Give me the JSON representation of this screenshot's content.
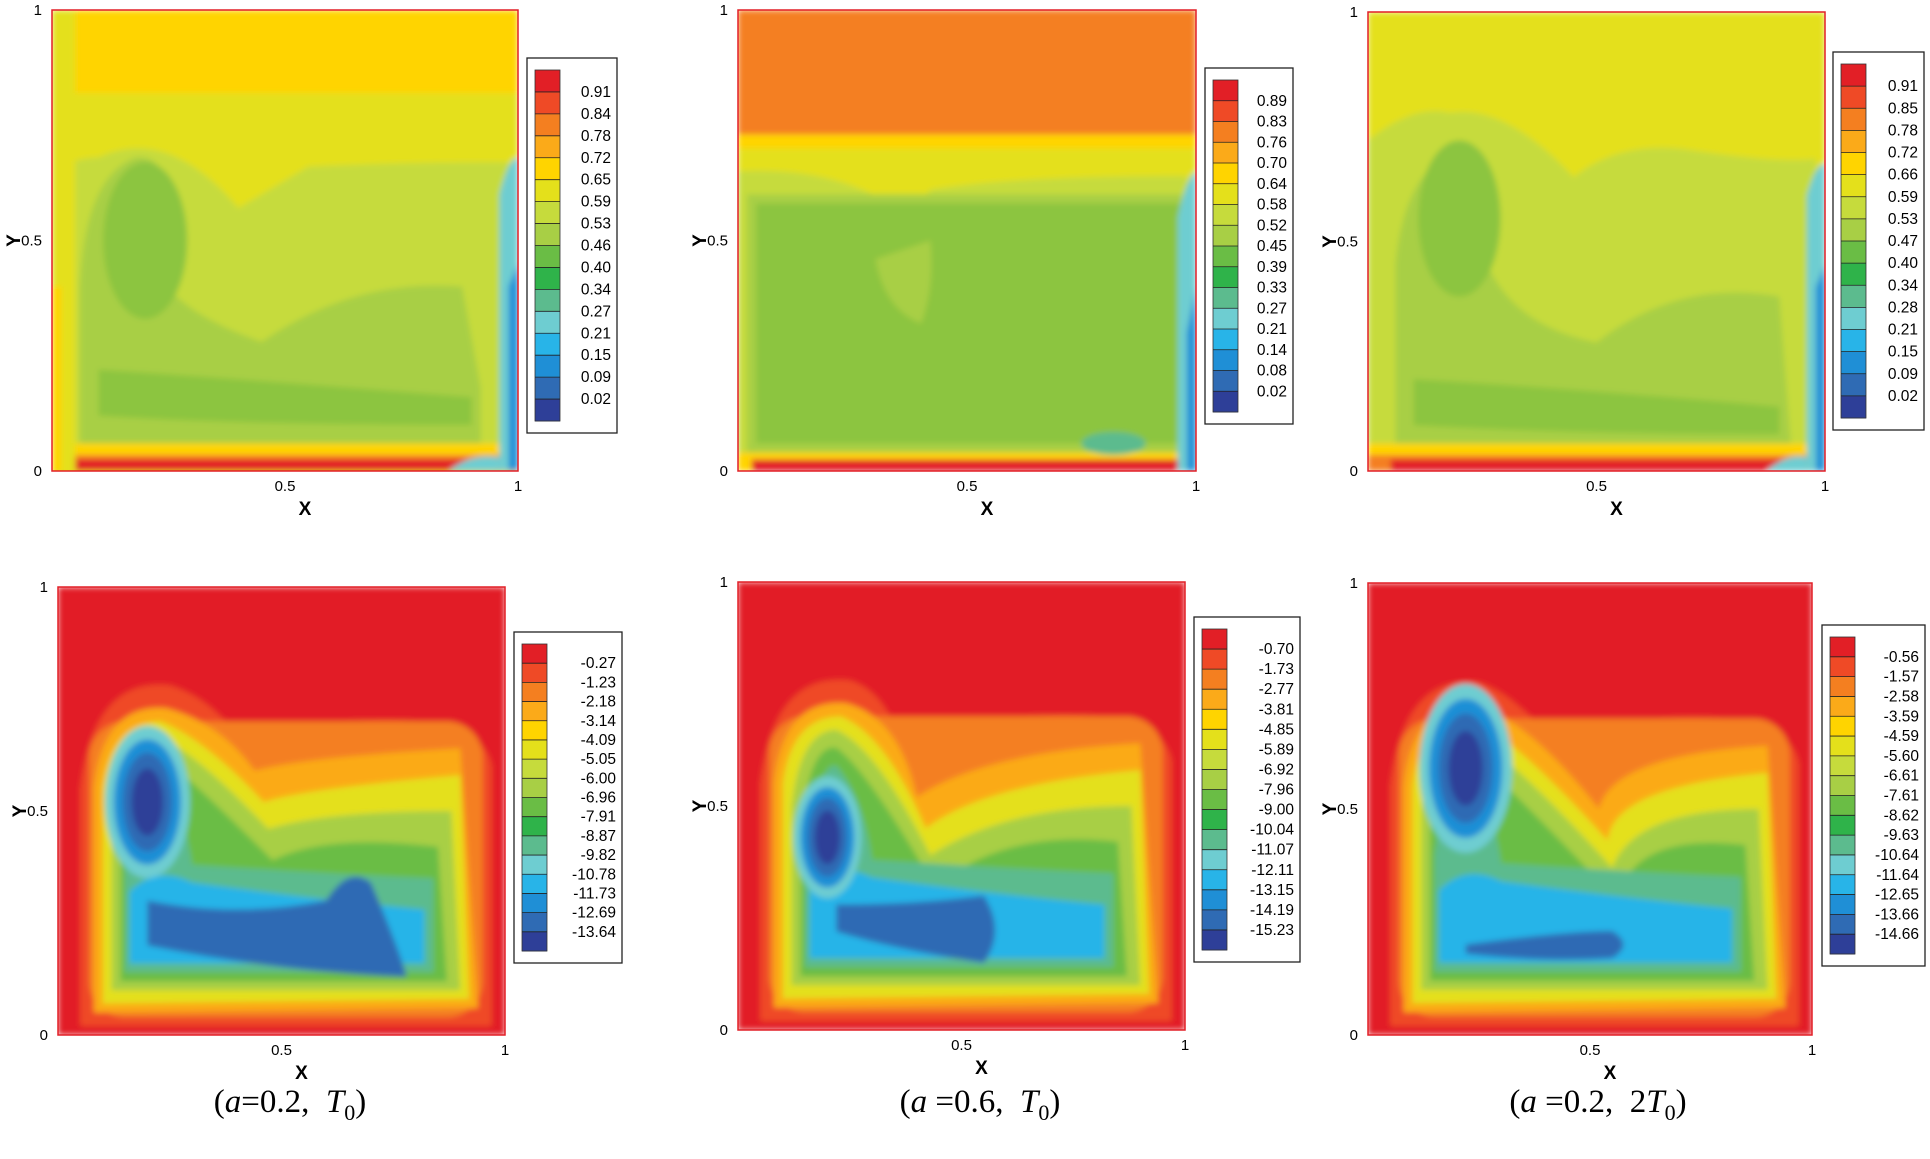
{
  "figure": {
    "captions": [
      {
        "pre": "(",
        "a_sym": "a",
        "a_val": "=0.2,",
        "t_coef": "",
        "t_sym": "T",
        "t_sub": "0",
        "post": ")"
      },
      {
        "pre": "(",
        "a_sym": "a",
        "a_val": " =0.6,",
        "t_coef": "",
        "t_sym": "T",
        "t_sub": "0",
        "post": ")"
      },
      {
        "pre": "(",
        "a_sym": "a",
        "a_val": " =0.2,",
        "t_coef": "2",
        "t_sym": "T",
        "t_sub": "0",
        "post": ")"
      }
    ]
  },
  "chart_data": [
    {
      "type": "contour",
      "row": 0,
      "col": 0,
      "field": "temperature",
      "pattern": "t_a02",
      "xlabel": "X",
      "ylabel": "Y",
      "xlim": [
        0,
        1
      ],
      "ylim": [
        0,
        1
      ],
      "x_ticks": [
        "0.5",
        "1"
      ],
      "y_ticks": [
        "0",
        "0.5",
        "1"
      ],
      "legend_levels": [
        "0.91",
        "0.84",
        "0.78",
        "0.72",
        "0.65",
        "0.59",
        "0.53",
        "0.46",
        "0.40",
        "0.34",
        "0.27",
        "0.21",
        "0.15",
        "0.09",
        "0.02"
      ]
    },
    {
      "type": "contour",
      "row": 0,
      "col": 1,
      "field": "temperature",
      "pattern": "t_a06",
      "xlabel": "X",
      "ylabel": "Y",
      "xlim": [
        0,
        1
      ],
      "ylim": [
        0,
        1
      ],
      "x_ticks": [
        "0.5",
        "1"
      ],
      "y_ticks": [
        "0",
        "0.5",
        "1"
      ],
      "legend_levels": [
        "0.89",
        "0.83",
        "0.76",
        "0.70",
        "0.64",
        "0.58",
        "0.52",
        "0.45",
        "0.39",
        "0.33",
        "0.27",
        "0.21",
        "0.14",
        "0.08",
        "0.02"
      ]
    },
    {
      "type": "contour",
      "row": 0,
      "col": 2,
      "field": "temperature",
      "pattern": "t_a02_2t",
      "xlabel": "X",
      "ylabel": "Y",
      "xlim": [
        0,
        1
      ],
      "ylim": [
        0,
        1
      ],
      "x_ticks": [
        "0.5",
        "1"
      ],
      "y_ticks": [
        "0",
        "0.5",
        "1"
      ],
      "legend_levels": [
        "0.91",
        "0.85",
        "0.78",
        "0.72",
        "0.66",
        "0.59",
        "0.53",
        "0.47",
        "0.40",
        "0.34",
        "0.28",
        "0.21",
        "0.15",
        "0.09",
        "0.02"
      ]
    },
    {
      "type": "contour",
      "row": 1,
      "col": 0,
      "field": "stream_function",
      "pattern": "s_a02",
      "xlabel": "X",
      "ylabel": "Y",
      "xlim": [
        0,
        1
      ],
      "ylim": [
        0,
        1
      ],
      "x_ticks": [
        "0.5",
        "1"
      ],
      "y_ticks": [
        "0",
        "0.5",
        "1"
      ],
      "legend_levels": [
        "-0.27",
        "-1.23",
        "-2.18",
        "-3.14",
        "-4.09",
        "-5.05",
        "-6.00",
        "-6.96",
        "-7.91",
        "-8.87",
        "-9.82",
        "-10.78",
        "-11.73",
        "-12.69",
        "-13.64"
      ]
    },
    {
      "type": "contour",
      "row": 1,
      "col": 1,
      "field": "stream_function",
      "pattern": "s_a06",
      "xlabel": "X",
      "ylabel": "Y",
      "xlim": [
        0,
        1
      ],
      "ylim": [
        0,
        1
      ],
      "x_ticks": [
        "0.5",
        "1"
      ],
      "y_ticks": [
        "0",
        "0.5",
        "1"
      ],
      "legend_levels": [
        "-0.70",
        "-1.73",
        "-2.77",
        "-3.81",
        "-4.85",
        "-5.89",
        "-6.92",
        "-7.96",
        "-9.00",
        "-10.04",
        "-11.07",
        "-12.11",
        "-13.15",
        "-14.19",
        "-15.23"
      ]
    },
    {
      "type": "contour",
      "row": 1,
      "col": 2,
      "field": "stream_function",
      "pattern": "s_a02_2t",
      "xlabel": "X",
      "ylabel": "Y",
      "xlim": [
        0,
        1
      ],
      "ylim": [
        0,
        1
      ],
      "x_ticks": [
        "0.5",
        "1"
      ],
      "y_ticks": [
        "0",
        "0.5",
        "1"
      ],
      "legend_levels": [
        "-0.56",
        "-1.57",
        "-2.58",
        "-3.59",
        "-4.59",
        "-5.60",
        "-6.61",
        "-7.61",
        "-8.62",
        "-9.63",
        "-10.64",
        "-11.64",
        "-12.65",
        "-13.66",
        "-14.66"
      ]
    }
  ],
  "colorscale": [
    "#e21f26",
    "#ef4a26",
    "#f47f20",
    "#fbaa19",
    "#ffd400",
    "#e4e01b",
    "#c6db3c",
    "#a8cf45",
    "#8cc540",
    "#6abd45",
    "#2fb34a",
    "#5cbb8e",
    "#6ecdd1",
    "#28b4e8",
    "#1f8fd6",
    "#2f6bb4",
    "#2e3f98"
  ]
}
